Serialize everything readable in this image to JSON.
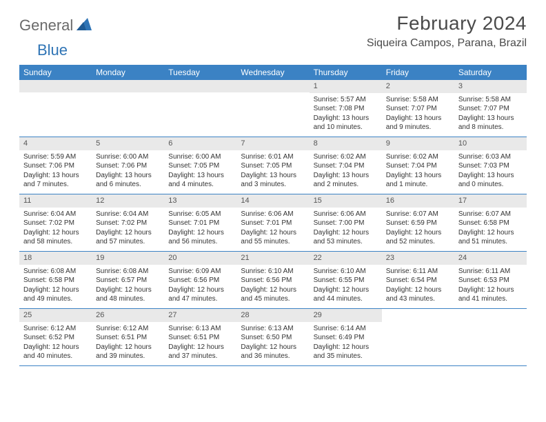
{
  "logo": {
    "general": "General",
    "blue": "Blue"
  },
  "title": "February 2024",
  "location": "Siqueira Campos, Parana, Brazil",
  "colors": {
    "header_bg": "#3b82c4",
    "header_text": "#ffffff",
    "daynum_bg": "#e9e9e9",
    "border": "#3b82c4",
    "text": "#333333",
    "logo_gray": "#6a6a6a",
    "logo_blue": "#2f74b5"
  },
  "days_of_week": [
    "Sunday",
    "Monday",
    "Tuesday",
    "Wednesday",
    "Thursday",
    "Friday",
    "Saturday"
  ],
  "weeks": [
    [
      null,
      null,
      null,
      null,
      {
        "n": "1",
        "sr": "Sunrise: 5:57 AM",
        "ss": "Sunset: 7:08 PM",
        "d1": "Daylight: 13 hours",
        "d2": "and 10 minutes."
      },
      {
        "n": "2",
        "sr": "Sunrise: 5:58 AM",
        "ss": "Sunset: 7:07 PM",
        "d1": "Daylight: 13 hours",
        "d2": "and 9 minutes."
      },
      {
        "n": "3",
        "sr": "Sunrise: 5:58 AM",
        "ss": "Sunset: 7:07 PM",
        "d1": "Daylight: 13 hours",
        "d2": "and 8 minutes."
      }
    ],
    [
      {
        "n": "4",
        "sr": "Sunrise: 5:59 AM",
        "ss": "Sunset: 7:06 PM",
        "d1": "Daylight: 13 hours",
        "d2": "and 7 minutes."
      },
      {
        "n": "5",
        "sr": "Sunrise: 6:00 AM",
        "ss": "Sunset: 7:06 PM",
        "d1": "Daylight: 13 hours",
        "d2": "and 6 minutes."
      },
      {
        "n": "6",
        "sr": "Sunrise: 6:00 AM",
        "ss": "Sunset: 7:05 PM",
        "d1": "Daylight: 13 hours",
        "d2": "and 4 minutes."
      },
      {
        "n": "7",
        "sr": "Sunrise: 6:01 AM",
        "ss": "Sunset: 7:05 PM",
        "d1": "Daylight: 13 hours",
        "d2": "and 3 minutes."
      },
      {
        "n": "8",
        "sr": "Sunrise: 6:02 AM",
        "ss": "Sunset: 7:04 PM",
        "d1": "Daylight: 13 hours",
        "d2": "and 2 minutes."
      },
      {
        "n": "9",
        "sr": "Sunrise: 6:02 AM",
        "ss": "Sunset: 7:04 PM",
        "d1": "Daylight: 13 hours",
        "d2": "and 1 minute."
      },
      {
        "n": "10",
        "sr": "Sunrise: 6:03 AM",
        "ss": "Sunset: 7:03 PM",
        "d1": "Daylight: 13 hours",
        "d2": "and 0 minutes."
      }
    ],
    [
      {
        "n": "11",
        "sr": "Sunrise: 6:04 AM",
        "ss": "Sunset: 7:02 PM",
        "d1": "Daylight: 12 hours",
        "d2": "and 58 minutes."
      },
      {
        "n": "12",
        "sr": "Sunrise: 6:04 AM",
        "ss": "Sunset: 7:02 PM",
        "d1": "Daylight: 12 hours",
        "d2": "and 57 minutes."
      },
      {
        "n": "13",
        "sr": "Sunrise: 6:05 AM",
        "ss": "Sunset: 7:01 PM",
        "d1": "Daylight: 12 hours",
        "d2": "and 56 minutes."
      },
      {
        "n": "14",
        "sr": "Sunrise: 6:06 AM",
        "ss": "Sunset: 7:01 PM",
        "d1": "Daylight: 12 hours",
        "d2": "and 55 minutes."
      },
      {
        "n": "15",
        "sr": "Sunrise: 6:06 AM",
        "ss": "Sunset: 7:00 PM",
        "d1": "Daylight: 12 hours",
        "d2": "and 53 minutes."
      },
      {
        "n": "16",
        "sr": "Sunrise: 6:07 AM",
        "ss": "Sunset: 6:59 PM",
        "d1": "Daylight: 12 hours",
        "d2": "and 52 minutes."
      },
      {
        "n": "17",
        "sr": "Sunrise: 6:07 AM",
        "ss": "Sunset: 6:58 PM",
        "d1": "Daylight: 12 hours",
        "d2": "and 51 minutes."
      }
    ],
    [
      {
        "n": "18",
        "sr": "Sunrise: 6:08 AM",
        "ss": "Sunset: 6:58 PM",
        "d1": "Daylight: 12 hours",
        "d2": "and 49 minutes."
      },
      {
        "n": "19",
        "sr": "Sunrise: 6:08 AM",
        "ss": "Sunset: 6:57 PM",
        "d1": "Daylight: 12 hours",
        "d2": "and 48 minutes."
      },
      {
        "n": "20",
        "sr": "Sunrise: 6:09 AM",
        "ss": "Sunset: 6:56 PM",
        "d1": "Daylight: 12 hours",
        "d2": "and 47 minutes."
      },
      {
        "n": "21",
        "sr": "Sunrise: 6:10 AM",
        "ss": "Sunset: 6:56 PM",
        "d1": "Daylight: 12 hours",
        "d2": "and 45 minutes."
      },
      {
        "n": "22",
        "sr": "Sunrise: 6:10 AM",
        "ss": "Sunset: 6:55 PM",
        "d1": "Daylight: 12 hours",
        "d2": "and 44 minutes."
      },
      {
        "n": "23",
        "sr": "Sunrise: 6:11 AM",
        "ss": "Sunset: 6:54 PM",
        "d1": "Daylight: 12 hours",
        "d2": "and 43 minutes."
      },
      {
        "n": "24",
        "sr": "Sunrise: 6:11 AM",
        "ss": "Sunset: 6:53 PM",
        "d1": "Daylight: 12 hours",
        "d2": "and 41 minutes."
      }
    ],
    [
      {
        "n": "25",
        "sr": "Sunrise: 6:12 AM",
        "ss": "Sunset: 6:52 PM",
        "d1": "Daylight: 12 hours",
        "d2": "and 40 minutes."
      },
      {
        "n": "26",
        "sr": "Sunrise: 6:12 AM",
        "ss": "Sunset: 6:51 PM",
        "d1": "Daylight: 12 hours",
        "d2": "and 39 minutes."
      },
      {
        "n": "27",
        "sr": "Sunrise: 6:13 AM",
        "ss": "Sunset: 6:51 PM",
        "d1": "Daylight: 12 hours",
        "d2": "and 37 minutes."
      },
      {
        "n": "28",
        "sr": "Sunrise: 6:13 AM",
        "ss": "Sunset: 6:50 PM",
        "d1": "Daylight: 12 hours",
        "d2": "and 36 minutes."
      },
      {
        "n": "29",
        "sr": "Sunrise: 6:14 AM",
        "ss": "Sunset: 6:49 PM",
        "d1": "Daylight: 12 hours",
        "d2": "and 35 minutes."
      },
      null,
      null
    ]
  ]
}
